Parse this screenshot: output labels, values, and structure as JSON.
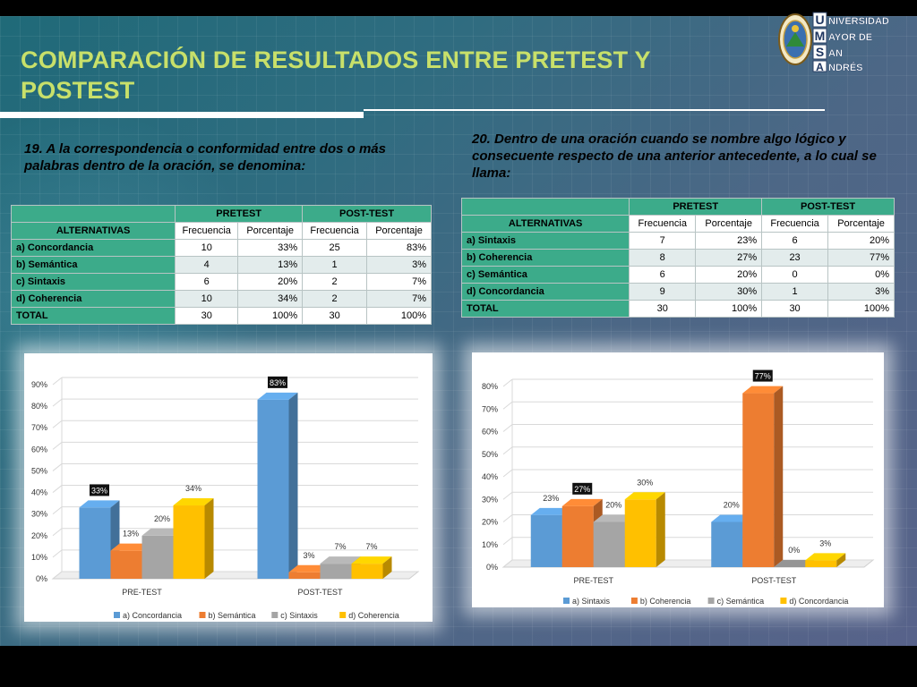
{
  "title": "COMPARACIÓN DE RESULTADOS ENTRE PRETEST Y POSTEST",
  "logo": {
    "line1": "NIVERSIDAD",
    "line2": "AYOR DE",
    "line3": "AN",
    "line4": "NDRÉS",
    "initials": [
      "U",
      "M",
      "S",
      "A"
    ]
  },
  "colors": {
    "accent_title": "#c8e06a",
    "table_header": "#3cab8a",
    "blue": "#5b9bd5",
    "orange": "#ed7d31",
    "gray": "#a5a5a5",
    "yellow": "#ffc000"
  },
  "question1": "19. A la correspondencia o conformidad entre dos o más palabras dentro de la oración, se denomina:",
  "question2": "20. Dentro de una oración cuando se nombre algo lógico y consecuente respecto de una anterior antecedente, a lo cual se llama:",
  "table1": {
    "group_pre": "PRETEST",
    "group_post": "POST-TEST",
    "col_alt": "ALTERNATIVAS",
    "col_freq": "Frecuencia",
    "col_pct": "Porcentaje",
    "rows": [
      {
        "label": "a) Concordancia",
        "pre_f": "10",
        "pre_p": "33%",
        "post_f": "25",
        "post_p": "83%"
      },
      {
        "label": "b) Semántica",
        "pre_f": "4",
        "pre_p": "13%",
        "post_f": "1",
        "post_p": "3%"
      },
      {
        "label": "c) Sintaxis",
        "pre_f": "6",
        "pre_p": "20%",
        "post_f": "2",
        "post_p": "7%"
      },
      {
        "label": "d) Coherencia",
        "pre_f": "10",
        "pre_p": "34%",
        "post_f": "2",
        "post_p": "7%"
      },
      {
        "label": "TOTAL",
        "pre_f": "30",
        "pre_p": "100%",
        "post_f": "30",
        "post_p": "100%"
      }
    ]
  },
  "table2": {
    "group_pre": "PRETEST",
    "group_post": "POST-TEST",
    "col_alt": "ALTERNATIVAS",
    "col_freq": "Frecuencia",
    "col_pct": "Porcentaje",
    "rows": [
      {
        "label": "a) Sintaxis",
        "pre_f": "7",
        "pre_p": "23%",
        "post_f": "6",
        "post_p": "20%"
      },
      {
        "label": "b) Coherencia",
        "pre_f": "8",
        "pre_p": "27%",
        "post_f": "23",
        "post_p": "77%"
      },
      {
        "label": "c) Semántica",
        "pre_f": "6",
        "pre_p": "20%",
        "post_f": "0",
        "post_p": "0%"
      },
      {
        "label": "d) Concordancia",
        "pre_f": "9",
        "pre_p": "30%",
        "post_f": "1",
        "post_p": "3%"
      },
      {
        "label": "TOTAL",
        "pre_f": "30",
        "pre_p": "100%",
        "post_f": "30",
        "post_p": "100%"
      }
    ]
  },
  "chart_data": [
    {
      "type": "bar",
      "title": "",
      "categories": [
        "PRE-TEST",
        "POST-TEST"
      ],
      "series": [
        {
          "name": "a) Concordancia",
          "values": [
            33,
            83
          ],
          "color": "#5b9bd5"
        },
        {
          "name": "b) Semántica",
          "values": [
            13,
            3
          ],
          "color": "#ed7d31"
        },
        {
          "name": "c) Sintaxis",
          "values": [
            20,
            7
          ],
          "color": "#a5a5a5"
        },
        {
          "name": "d) Coherencia",
          "values": [
            34,
            7
          ],
          "color": "#ffc000"
        }
      ],
      "ylim": [
        0,
        90
      ],
      "yticks": [
        "0%",
        "10%",
        "20%",
        "30%",
        "40%",
        "50%",
        "60%",
        "70%",
        "80%",
        "90%"
      ],
      "highlighted_labels": [
        "33%",
        "83%"
      ],
      "grid": true,
      "legend": "bottom"
    },
    {
      "type": "bar",
      "title": "",
      "categories": [
        "PRE-TEST",
        "POST-TEST"
      ],
      "series": [
        {
          "name": "a) Sintaxis",
          "values": [
            23,
            20
          ],
          "color": "#5b9bd5"
        },
        {
          "name": "b) Coherencia",
          "values": [
            27,
            77
          ],
          "color": "#ed7d31"
        },
        {
          "name": "c) Semántica",
          "values": [
            20,
            0
          ],
          "color": "#a5a5a5"
        },
        {
          "name": "d) Concordancia",
          "values": [
            30,
            3
          ],
          "color": "#ffc000"
        }
      ],
      "ylim": [
        0,
        80
      ],
      "yticks": [
        "0%",
        "10%",
        "20%",
        "30%",
        "40%",
        "50%",
        "60%",
        "70%",
        "80%"
      ],
      "highlighted_labels": [
        "27%",
        "77%"
      ],
      "grid": true,
      "legend": "bottom"
    }
  ]
}
